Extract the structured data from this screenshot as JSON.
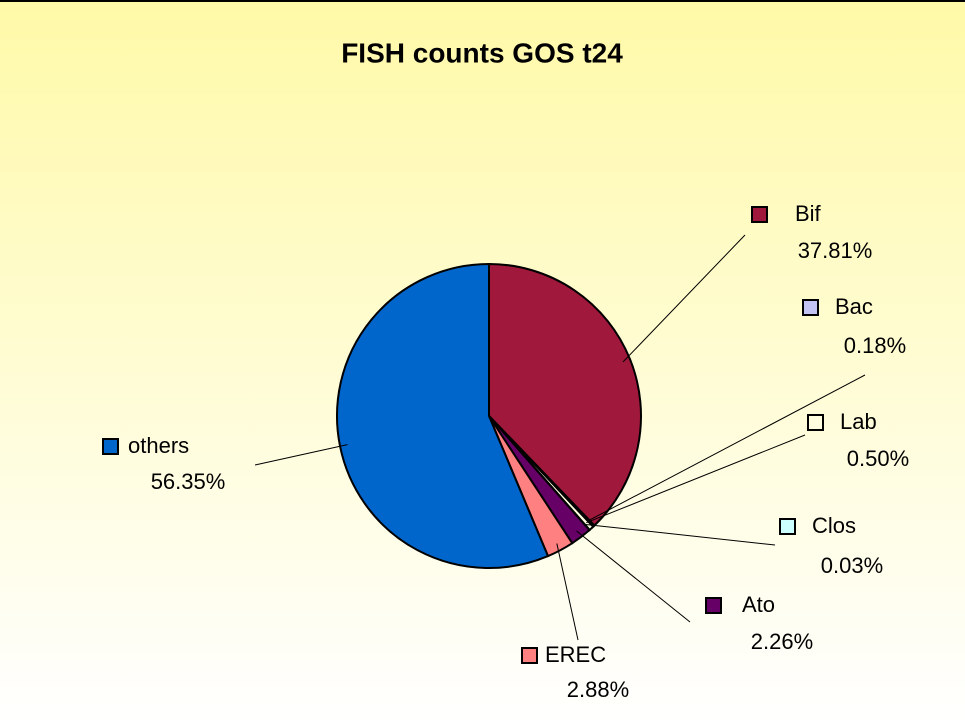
{
  "chart_data": {
    "type": "pie",
    "title": "FISH counts GOS t24",
    "categories": [
      "Bif",
      "Bac",
      "Lab",
      "Clos",
      "Ato",
      "EREC",
      "others"
    ],
    "values": [
      37.81,
      0.18,
      0.5,
      0.03,
      2.26,
      2.88,
      56.35
    ],
    "value_labels": [
      "37.81%",
      "0.18%",
      "0.50%",
      "0.03%",
      "2.26%",
      "2.88%",
      "56.35%"
    ],
    "colors": [
      "#a0183c",
      "#c4c4f4",
      "#ffffe0",
      "#ccffff",
      "#660066",
      "#ff8080",
      "#0066cc"
    ]
  }
}
